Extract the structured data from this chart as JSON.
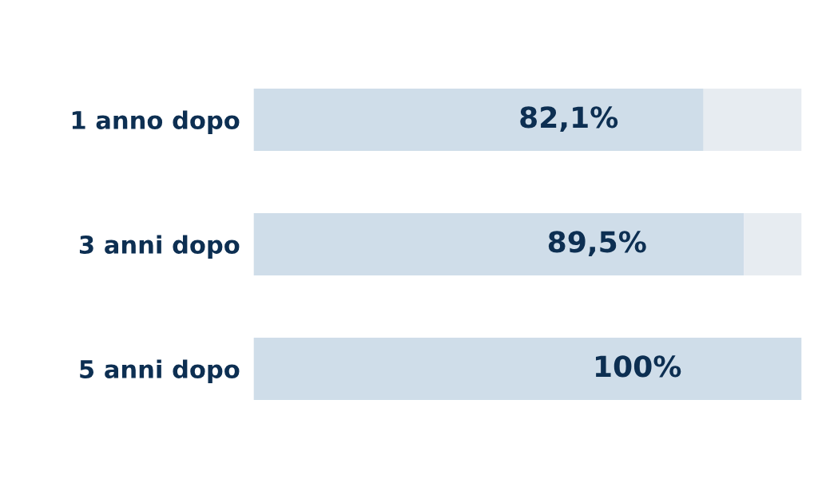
{
  "chart_data": {
    "type": "bar",
    "orientation": "horizontal",
    "stacked": true,
    "categories": [
      "1 anno dopo",
      "3 anni dopo",
      "5 anni dopo"
    ],
    "series": [
      {
        "color": "#cfdde9",
        "values": [
          82.1,
          89.5,
          100
        ],
        "value_labels": [
          "82,1%",
          "89,5%",
          "100%"
        ]
      },
      {
        "color": "#e7ecf1",
        "values": [
          17.9,
          10.5,
          0
        ]
      }
    ],
    "xlim": [
      0,
      100
    ],
    "tick_labels": "y",
    "grid": false,
    "legend": false
  }
}
